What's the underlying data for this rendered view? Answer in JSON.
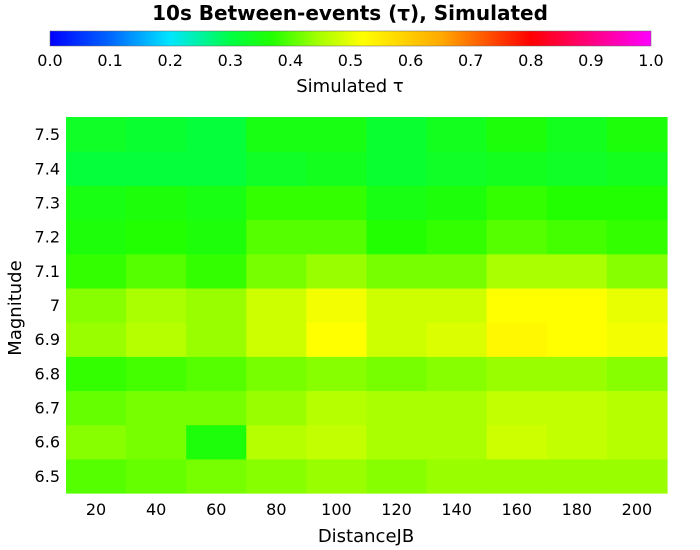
{
  "chart_data": {
    "type": "heatmap",
    "title": "10s Between-events (τ), Simulated",
    "colorbar": {
      "label": "Simulated τ",
      "min": 0.0,
      "max": 1.0,
      "ticks": [
        "0.0",
        "0.1",
        "0.2",
        "0.3",
        "0.4",
        "0.5",
        "0.6",
        "0.7",
        "0.8",
        "0.9",
        "1.0"
      ],
      "colormap": "rainbow (blue → cyan → green → yellow → red → magenta)"
    },
    "xlabel": "DistanceJB",
    "ylabel": "Magnitude",
    "x": [
      20,
      40,
      60,
      80,
      100,
      120,
      140,
      160,
      180,
      200
    ],
    "y": [
      "6.5",
      "6.6",
      "6.7",
      "6.8",
      "6.9",
      "7",
      "7.1",
      "7.2",
      "7.3",
      "7.4",
      "7.5"
    ],
    "values": [
      [
        0.4,
        0.41,
        0.42,
        0.43,
        0.44,
        0.43,
        0.44,
        0.44,
        0.44,
        0.44
      ],
      [
        0.43,
        0.42,
        0.36,
        0.46,
        0.47,
        0.45,
        0.45,
        0.48,
        0.47,
        0.46
      ],
      [
        0.41,
        0.42,
        0.42,
        0.44,
        0.46,
        0.45,
        0.45,
        0.47,
        0.47,
        0.46
      ],
      [
        0.38,
        0.39,
        0.4,
        0.42,
        0.43,
        0.42,
        0.43,
        0.44,
        0.44,
        0.43
      ],
      [
        0.44,
        0.46,
        0.44,
        0.48,
        0.52,
        0.48,
        0.49,
        0.53,
        0.52,
        0.51
      ],
      [
        0.43,
        0.45,
        0.44,
        0.48,
        0.51,
        0.48,
        0.48,
        0.52,
        0.52,
        0.5
      ],
      [
        0.38,
        0.4,
        0.38,
        0.42,
        0.44,
        0.42,
        0.42,
        0.45,
        0.45,
        0.43
      ],
      [
        0.36,
        0.37,
        0.36,
        0.4,
        0.4,
        0.37,
        0.38,
        0.4,
        0.39,
        0.38
      ],
      [
        0.35,
        0.36,
        0.35,
        0.38,
        0.38,
        0.35,
        0.36,
        0.38,
        0.37,
        0.37
      ],
      [
        0.31,
        0.31,
        0.31,
        0.33,
        0.34,
        0.32,
        0.33,
        0.34,
        0.33,
        0.34
      ],
      [
        0.33,
        0.32,
        0.31,
        0.35,
        0.35,
        0.32,
        0.34,
        0.36,
        0.34,
        0.36
      ]
    ]
  }
}
